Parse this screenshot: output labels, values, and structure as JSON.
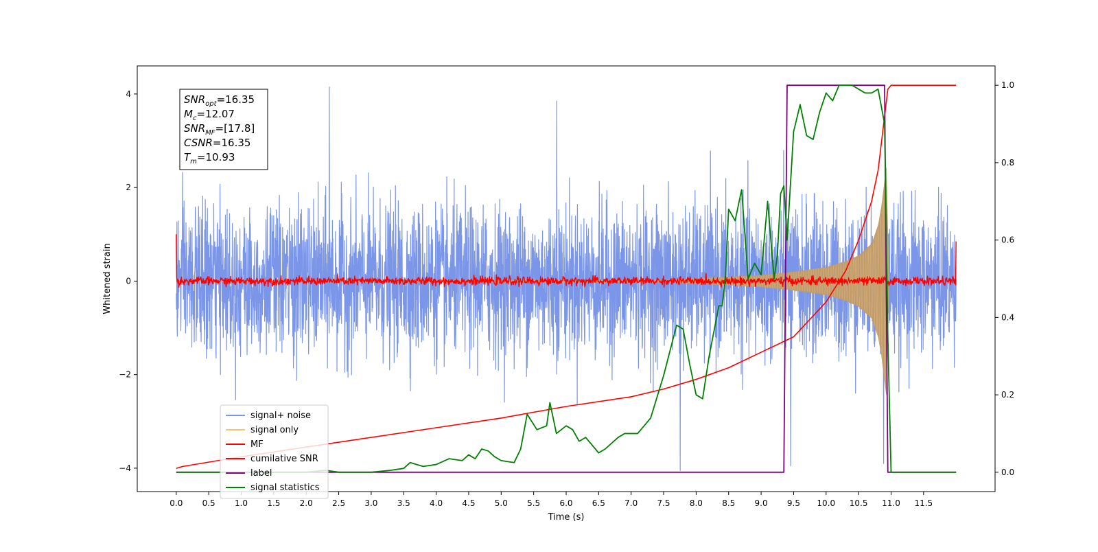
{
  "chart_data": {
    "type": "line",
    "title": "",
    "xlabel": "Time (s)",
    "ylabel_left": "Whitened strain",
    "ylabel_right": "",
    "xlim": [
      -0.6,
      12.6
    ],
    "ylim_left": [
      -4.5,
      4.6
    ],
    "ylim_right": [
      -0.05,
      1.05
    ],
    "grid": false,
    "legend_position": "lower-left",
    "x_ticks": [
      0.0,
      0.5,
      1.0,
      1.5,
      2.0,
      2.5,
      3.0,
      3.5,
      4.0,
      4.5,
      5.0,
      5.5,
      6.0,
      6.5,
      7.0,
      7.5,
      8.0,
      8.5,
      9.0,
      9.5,
      10.0,
      10.5,
      11.0,
      11.5
    ],
    "x_tick_labels": [
      "0.0",
      "0.5",
      "1.0",
      "1.5",
      "2.0",
      "2.5",
      "3.0",
      "3.5",
      "4.0",
      "4.5",
      "5.0",
      "5.5",
      "6.0",
      "6.5",
      "7.0",
      "7.5",
      "8.0",
      "8.5",
      "9.0",
      "9.5",
      "10.0",
      "10.5",
      "11.0",
      "11.5"
    ],
    "y_ticks_left": [
      -4,
      -2,
      0,
      2,
      4
    ],
    "y_tick_labels_left": [
      "−4",
      "−2",
      "0",
      "2",
      "4"
    ],
    "y_ticks_right": [
      0.0,
      0.2,
      0.4,
      0.6,
      0.8,
      1.0
    ],
    "y_tick_labels_right": [
      "0.0",
      "0.2",
      "0.4",
      "0.6",
      "0.8",
      "1.0"
    ],
    "annotation": {
      "lines": [
        {
          "italic": "SNR",
          "sub": "opt",
          "rest": "=16.35"
        },
        {
          "italic": "M",
          "sub": "c",
          "rest": "=12.07"
        },
        {
          "italic": "SNR",
          "sub": "MF",
          "rest": "=[17.8]"
        },
        {
          "italic": "CSNR",
          "sub": "",
          "rest": "=16.35"
        },
        {
          "italic": "T",
          "sub": "m",
          "rest": "=10.93"
        }
      ]
    },
    "series": [
      {
        "name": "signal+ noise",
        "axis": "left",
        "color": "#7b96e8",
        "x_range": [
          0.0,
          12.0
        ],
        "typical_envelope": [
          -1.6,
          1.6
        ],
        "extremes": [
          {
            "x": 2.35,
            "y": 4.15
          },
          {
            "x": 5.85,
            "y": 3.85
          },
          {
            "x": 7.75,
            "y": -4.05
          },
          {
            "x": 9.45,
            "y": -3.95
          },
          {
            "x": 10.88,
            "y": -3.9
          }
        ]
      },
      {
        "name": "signal only",
        "axis": "left",
        "color": "#f5c56a",
        "x": [
          0.0,
          7.5,
          8.0,
          8.5,
          9.0,
          9.5,
          10.0,
          10.3,
          10.5,
          10.7,
          10.8,
          10.85,
          10.93,
          10.97
        ],
        "amplitude": [
          0.01,
          0.03,
          0.06,
          0.09,
          0.13,
          0.2,
          0.3,
          0.42,
          0.55,
          0.8,
          1.2,
          1.6,
          2.5,
          0.0
        ]
      },
      {
        "name": "MF",
        "axis": "left",
        "color": "#ff0000",
        "x_range": [
          0.0,
          12.0
        ],
        "center": 0.0,
        "typical_envelope": [
          -0.12,
          0.12
        ],
        "start_value": 1.0,
        "end_value": 0.85
      },
      {
        "name": "cumilative SNR",
        "axis": "right",
        "color": "#ff0000",
        "x": [
          0.0,
          0.1,
          1.0,
          2.0,
          3.0,
          4.0,
          5.0,
          6.0,
          7.0,
          7.5,
          8.0,
          8.5,
          9.0,
          9.5,
          10.0,
          10.3,
          10.5,
          10.7,
          10.8,
          10.85,
          10.9,
          10.95,
          11.0,
          12.0
        ],
        "y": [
          0.01,
          0.015,
          0.04,
          0.065,
          0.09,
          0.115,
          0.14,
          0.17,
          0.195,
          0.215,
          0.24,
          0.27,
          0.31,
          0.35,
          0.44,
          0.52,
          0.6,
          0.7,
          0.78,
          0.85,
          0.92,
          0.99,
          1.0,
          1.0
        ]
      },
      {
        "name": "label",
        "axis": "right",
        "color": "#800080",
        "x": [
          0.0,
          9.35,
          9.4,
          10.9,
          10.95,
          12.0
        ],
        "y": [
          0.0,
          0.0,
          1.0,
          1.0,
          0.0,
          0.0
        ]
      },
      {
        "name": "signal statistics",
        "axis": "right",
        "color": "#008000",
        "x": [
          0.0,
          0.5,
          1.0,
          1.5,
          2.0,
          2.3,
          2.5,
          3.0,
          3.3,
          3.5,
          3.6,
          3.8,
          4.0,
          4.2,
          4.4,
          4.5,
          4.6,
          4.7,
          4.8,
          4.9,
          5.0,
          5.2,
          5.3,
          5.4,
          5.55,
          5.7,
          5.75,
          5.85,
          6.0,
          6.1,
          6.2,
          6.3,
          6.5,
          6.6,
          6.8,
          6.9,
          7.1,
          7.3,
          7.5,
          7.7,
          7.8,
          7.9,
          8.0,
          8.1,
          8.2,
          8.35,
          8.4,
          8.45,
          8.5,
          8.6,
          8.7,
          8.8,
          8.9,
          9.0,
          9.1,
          9.2,
          9.25,
          9.3,
          9.35,
          9.4,
          9.5,
          9.6,
          9.7,
          9.8,
          9.9,
          10.0,
          10.1,
          10.2,
          10.3,
          10.4,
          10.5,
          10.6,
          10.7,
          10.8,
          10.9,
          10.95,
          11.0,
          12.0
        ],
        "y": [
          0.0,
          0.0,
          0.0,
          0.0,
          0.0,
          0.005,
          0.0,
          0.0,
          0.005,
          0.01,
          0.025,
          0.015,
          0.02,
          0.035,
          0.03,
          0.045,
          0.035,
          0.06,
          0.055,
          0.04,
          0.03,
          0.025,
          0.06,
          0.15,
          0.11,
          0.12,
          0.18,
          0.1,
          0.12,
          0.11,
          0.08,
          0.09,
          0.05,
          0.06,
          0.09,
          0.1,
          0.1,
          0.14,
          0.25,
          0.38,
          0.37,
          0.28,
          0.2,
          0.19,
          0.3,
          0.43,
          0.43,
          0.5,
          0.68,
          0.65,
          0.73,
          0.5,
          0.54,
          0.51,
          0.7,
          0.5,
          0.56,
          0.72,
          0.74,
          0.6,
          0.88,
          0.95,
          0.87,
          0.86,
          0.93,
          0.98,
          0.96,
          1.0,
          1.0,
          1.0,
          0.99,
          0.98,
          0.98,
          0.99,
          0.9,
          0.35,
          0.0,
          0.0
        ]
      }
    ]
  }
}
